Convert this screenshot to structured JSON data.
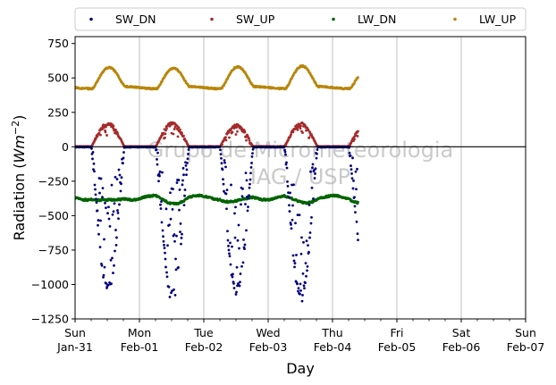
{
  "chart_data": {
    "type": "scatter",
    "xlabel": "Day",
    "ylabel_text": "Radiation (",
    "ylabel_unit_base": "Wm",
    "ylabel_unit_exp": "−2",
    "ylabel_close": ")",
    "xlim": [
      0,
      7
    ],
    "ylim": [
      -1250,
      800
    ],
    "yticks": [
      750,
      500,
      250,
      0,
      -250,
      -500,
      -750,
      -1000,
      -1250
    ],
    "ytick_labels": [
      "750",
      "500",
      "250",
      "0",
      "−250",
      "−500",
      "−750",
      "−1000",
      "−1250"
    ],
    "xticks": [
      {
        "x": 0,
        "day": "Sun",
        "date": "Jan-31"
      },
      {
        "x": 1,
        "day": "Mon",
        "date": "Feb-01"
      },
      {
        "x": 2,
        "day": "Tue",
        "date": "Feb-02"
      },
      {
        "x": 3,
        "day": "Wed",
        "date": "Feb-03"
      },
      {
        "x": 4,
        "day": "Thu",
        "date": "Feb-04"
      },
      {
        "x": 5,
        "day": "Fri",
        "date": "Feb-05"
      },
      {
        "x": 6,
        "day": "Sat",
        "date": "Feb-06"
      },
      {
        "x": 7,
        "day": "Sun",
        "date": "Feb-07"
      }
    ],
    "grid": "vertical",
    "zero_line": true,
    "legend_position": "top, above plot",
    "watermark_lines": [
      "Grupo de Micrometeorologia",
      "IAG / USP"
    ],
    "data_range_days": [
      0,
      4.4
    ],
    "series": [
      {
        "name": "SW_DN",
        "color": "#00007f",
        "shape": "inverted diurnal bell, 0 at night, daily minima near -1000 to -1150 at midday, scattered cloud points"
      },
      {
        "name": "SW_UP",
        "color": "#a52a2a",
        "shape": "diurnal arch, 0 at night, daily maxima near 150 to 175"
      },
      {
        "name": "LW_DN",
        "color": "#006400",
        "shape": "roughly constant near -370 to -420"
      },
      {
        "name": "LW_UP",
        "color": "#b8860b",
        "shape": "diurnal, about 425 at night rising to about 560 to 580 at midday"
      }
    ]
  }
}
